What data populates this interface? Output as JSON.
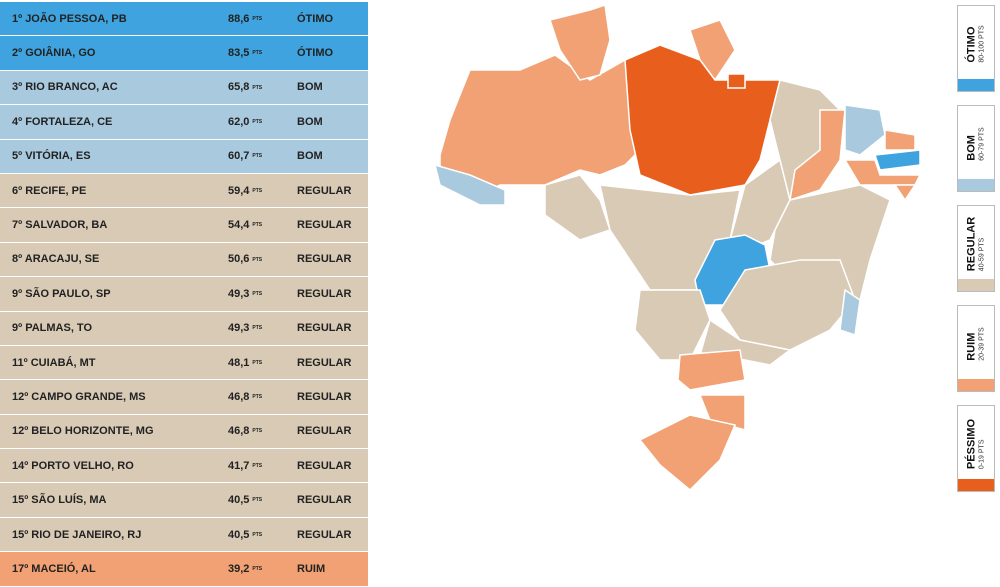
{
  "table": {
    "unit": "PTS",
    "rows": [
      [
        "1º JOÃO PESSOA, PB",
        "88,6",
        "ÓTIMO"
      ],
      [
        "2º GOIÂNIA, GO",
        "83,5",
        "ÓTIMO"
      ],
      [
        "3º RIO BRANCO, AC",
        "65,8",
        "BOM"
      ],
      [
        "4º FORTALEZA, CE",
        "62,0",
        "BOM"
      ],
      [
        "5º VITÓRIA, ES",
        "60,7",
        "BOM"
      ],
      [
        "6º RECIFE, PE",
        "59,4",
        "REGULAR"
      ],
      [
        "7º SALVADOR, BA",
        "54,4",
        "REGULAR"
      ],
      [
        "8º ARACAJU, SE",
        "50,6",
        "REGULAR"
      ],
      [
        "9º SÃO PAULO, SP",
        "49,3",
        "REGULAR"
      ],
      [
        "9º PALMAS, TO",
        "49,3",
        "REGULAR"
      ],
      [
        "11º CUIABÁ, MT",
        "48,1",
        "REGULAR"
      ],
      [
        "12º CAMPO GRANDE, MS",
        "46,8",
        "REGULAR"
      ],
      [
        "12º BELO HORIZONTE, MG",
        "46,8",
        "REGULAR"
      ],
      [
        "14º PORTO VELHO, RO",
        "41,7",
        "REGULAR"
      ],
      [
        "15º SÃO LUÍS, MA",
        "40,5",
        "REGULAR"
      ],
      [
        "15º RIO DE JANEIRO, RJ",
        "40,5",
        "REGULAR"
      ],
      [
        "17º MACEIÓ, AL",
        "39,2",
        "RUIM"
      ]
    ]
  },
  "legend": [
    {
      "name": "ÓTIMO",
      "range": "80-100 PTS",
      "color": "#3ea3de"
    },
    {
      "name": "BOM",
      "range": "60-79 PTS",
      "color": "#a8c9de"
    },
    {
      "name": "REGULAR",
      "range": "40-59 PTS",
      "color": "#d8cab5"
    },
    {
      "name": "RUIM",
      "range": "20-39 PTS",
      "color": "#f1a173"
    },
    {
      "name": "PÉSSIMO",
      "range": "0-19 PTS",
      "color": "#e85e1c"
    }
  ]
}
